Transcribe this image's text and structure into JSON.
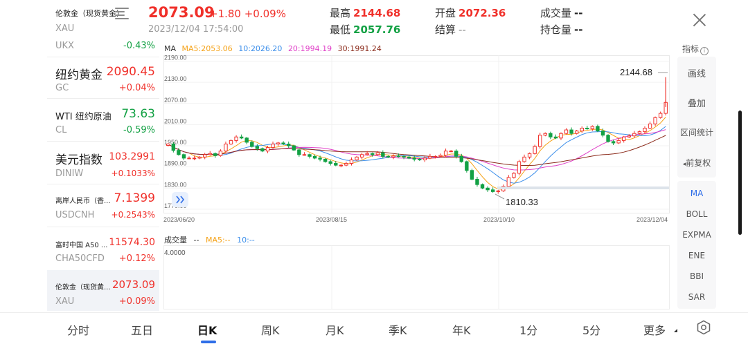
{
  "header": {
    "name": "伦敦金（现货黄金）",
    "code": "XAU",
    "price": "2073.09",
    "change": "+1.80 +0.09%",
    "time": "2023/12/04 17:54:00",
    "stats": {
      "high_label": "最高",
      "high": "2144.68",
      "low_label": "最低",
      "low": "2057.76",
      "open_label": "开盘",
      "open": "2072.36",
      "settle_label": "结算",
      "settle": "--",
      "volume_label": "成交量",
      "volume": "--",
      "oi_label": "持仓量",
      "oi": "--"
    }
  },
  "watchlist": [
    {
      "code": "UKX",
      "change": "-0.43%",
      "dir": "down"
    },
    {
      "name": "纽约黄金",
      "price": "2090.45",
      "code": "GC",
      "change": "+0.04%",
      "dir": "up"
    },
    {
      "name": "WTI 纽约原油",
      "price": "73.63",
      "code": "CL",
      "change": "-0.59%",
      "dir": "down"
    },
    {
      "name": "美元指数",
      "price": "103.2991",
      "code": "DINIW",
      "change": "+0.1033%",
      "dir": "up"
    },
    {
      "name": "离岸人民币（香...",
      "price": "7.1399",
      "code": "USDCNH",
      "change": "+0.2543%",
      "dir": "up"
    },
    {
      "name": "富时中国 A50 ...",
      "price": "11574.30",
      "code": "CHA50CFD",
      "change": "+0.12%",
      "dir": "up"
    },
    {
      "name": "伦敦金（现货黄...",
      "price": "2073.09",
      "code": "XAU",
      "change": "+0.09%",
      "dir": "up"
    }
  ],
  "ma_legend": {
    "label": "MA",
    "ma5": "MA5:2053.06",
    "ma10": "10:2026.20",
    "ma20": "20:1994.19",
    "ma30": "30:1991.24"
  },
  "colors": {
    "up": "#f0302a",
    "down": "#13a144",
    "ma5": "#f5a31a",
    "ma10": "#3b8eea",
    "ma20": "#e040c8",
    "ma30": "#8b2a1a",
    "accent": "#2f6ee8"
  },
  "chart_data": {
    "type": "candlestick",
    "y_ticks": [
      "2190.00",
      "2130.00",
      "2070.00",
      "2010.00",
      "1950.00",
      "1890.00",
      "1830.00",
      "1770.00"
    ],
    "ylim": [
      1760,
      2195
    ],
    "x_ticks": [
      "2023/06/20",
      "2023/08/15",
      "2023/10/10",
      "2023/12/04"
    ],
    "max_label": "2144.68",
    "min_label": "1810.33",
    "close_path": [
      1955,
      1937,
      1925,
      1915,
      1915,
      1915,
      1918,
      1925,
      1928,
      1922,
      1935,
      1955,
      1965,
      1975,
      1972,
      1960,
      1948,
      1942,
      1935,
      1945,
      1955,
      1958,
      1955,
      1950,
      1938,
      1925,
      1925,
      1920,
      1915,
      1912,
      1905,
      1900,
      1895,
      1895,
      1900,
      1910,
      1918,
      1925,
      1928,
      1925,
      1930,
      1920,
      1918,
      1921,
      1920,
      1918,
      1915,
      1912,
      1910,
      1915,
      1920,
      1920,
      1923,
      1935,
      1935,
      1920,
      1905,
      1880,
      1855,
      1840,
      1830,
      1825,
      1820,
      1822,
      1835,
      1860,
      1872,
      1905,
      1918,
      1928,
      1948,
      1980,
      1985,
      1975,
      1972,
      1985,
      1995,
      1985,
      1992,
      2000,
      1998,
      2005,
      1992,
      1980,
      1962,
      1958,
      1965,
      1975,
      1978,
      1985,
      1990,
      2000,
      2012,
      2030,
      2042,
      2073
    ],
    "volume_axis": "4.0000",
    "volume_legend": {
      "label": "成交量",
      "vol": "--",
      "ma5": "MA5:--",
      "ma10": "10:--"
    }
  },
  "indicator_panel": {
    "header": "指标",
    "tools": [
      "画线",
      "叠加",
      "区间统计",
      "前复权"
    ],
    "indicators": [
      "MA",
      "BOLL",
      "EXPMA",
      "ENE",
      "BBI",
      "SAR"
    ],
    "active": "MA"
  },
  "tabs": [
    "分时",
    "五日",
    "日K",
    "周K",
    "月K",
    "季K",
    "年K",
    "1分",
    "5分",
    "更多"
  ],
  "active_tab": "日K",
  "icons": {
    "menu": "menu-icon",
    "close": "close-icon",
    "expand": "double-chevron-right-icon",
    "settings": "settings-icon",
    "info": "info-icon"
  }
}
